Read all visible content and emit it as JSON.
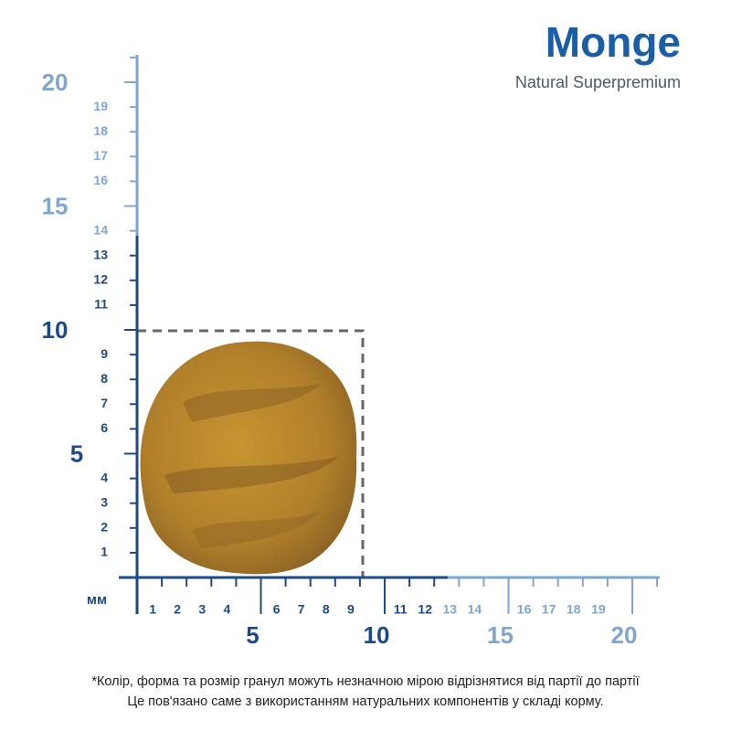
{
  "logo": {
    "brand": "Monge",
    "tagline": "Natural Superpremium"
  },
  "ruler": {
    "unit": "мм",
    "y_minor": [
      "1",
      "2",
      "3",
      "4",
      "6",
      "7",
      "8",
      "9",
      "11",
      "12",
      "13",
      "14",
      "16",
      "17",
      "18",
      "19"
    ],
    "y_major": [
      "5",
      "10",
      "15",
      "20"
    ],
    "x_minor": [
      "1",
      "2",
      "3",
      "4",
      "6",
      "7",
      "8",
      "9",
      "11",
      "12",
      "13",
      "14",
      "16",
      "17",
      "18",
      "19"
    ],
    "x_major": [
      "5",
      "10",
      "15",
      "20"
    ]
  },
  "footnote": [
    "*Колір, форма та розмір гранул можуть незначною мірою відрізнятися від партії до партії",
    "Це пов'язано саме з використанням натуральних компонентів у складі корму."
  ]
}
